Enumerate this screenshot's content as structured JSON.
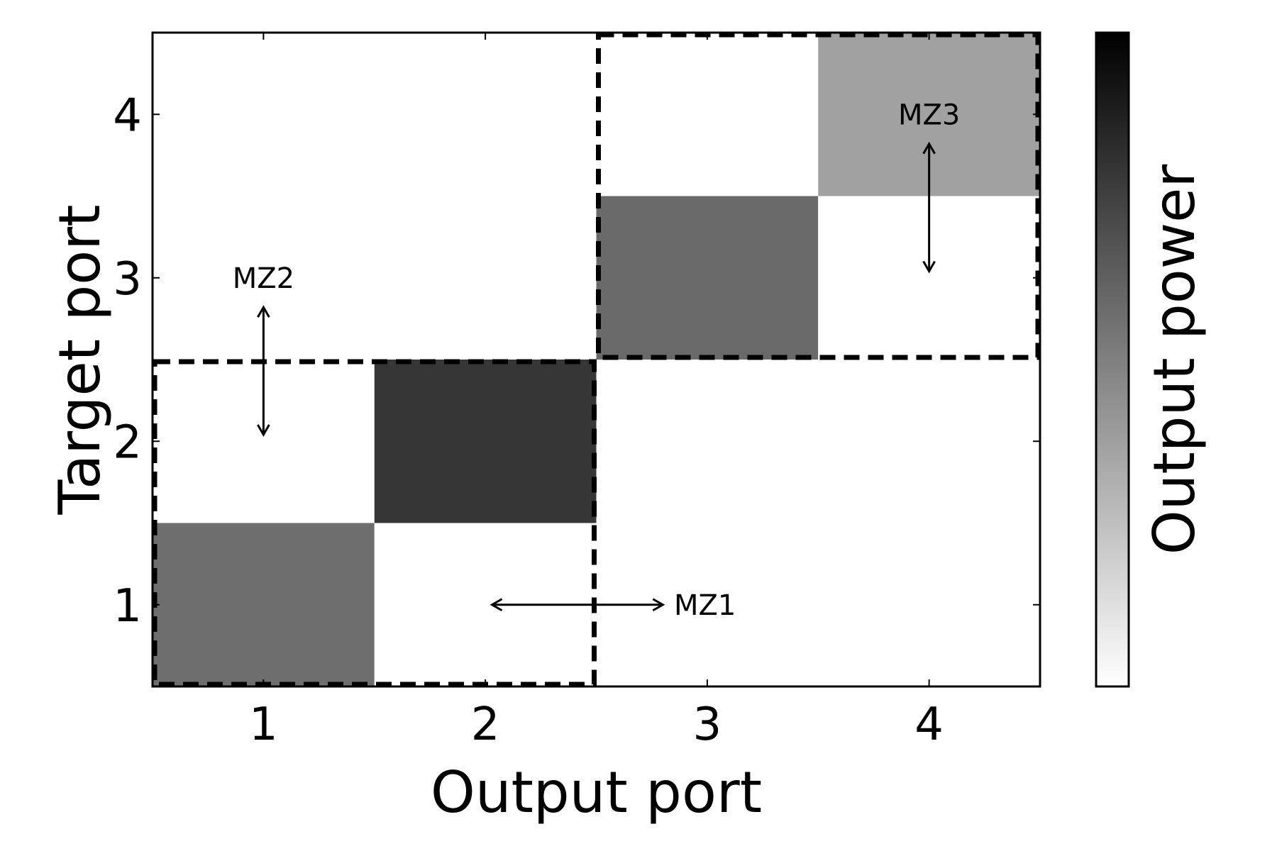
{
  "chart_data": {
    "type": "heatmap",
    "title": "",
    "xlabel": "Output port",
    "ylabel": "Target port",
    "colorbar_label": "Output power",
    "x_categories": [
      "1",
      "2",
      "3",
      "4"
    ],
    "y_categories": [
      "1",
      "2",
      "3",
      "4"
    ],
    "xlim": [
      0.5,
      4.5
    ],
    "ylim": [
      0.5,
      4.5
    ],
    "colormap": "gray_r",
    "color_low": "#ffffff",
    "color_high": "#000000",
    "value_range": [
      0,
      1
    ],
    "values": [
      [
        0.57,
        0.0,
        0.0,
        0.0
      ],
      [
        0.0,
        0.79,
        0.0,
        0.0
      ],
      [
        0.0,
        0.0,
        0.59,
        0.0
      ],
      [
        0.0,
        0.0,
        0.0,
        0.37
      ]
    ],
    "values_note_rows": "values[row] corresponds to target port row+1, column to output port col+1",
    "dashed_regions": [
      {
        "x_range": [
          0.5,
          2.5
        ],
        "y_range": [
          0.5,
          2.5
        ]
      },
      {
        "x_range": [
          2.5,
          4.5
        ],
        "y_range": [
          2.5,
          4.5
        ]
      }
    ],
    "annotations": [
      {
        "text": "MZ1",
        "arrow": "horizontal",
        "from": [
          2.03,
          1.0
        ],
        "to": [
          2.8,
          1.0
        ],
        "label_at": [
          2.85,
          1.0
        ],
        "anchor": "start"
      },
      {
        "text": "MZ2",
        "arrow": "vertical",
        "from": [
          1.0,
          2.04
        ],
        "to": [
          1.0,
          2.82
        ],
        "label_at": [
          1.0,
          3.0
        ],
        "anchor": "middle"
      },
      {
        "text": "MZ3",
        "arrow": "vertical",
        "from": [
          4.0,
          3.04
        ],
        "to": [
          4.0,
          3.82
        ],
        "label_at": [
          4.0,
          4.0
        ],
        "anchor": "middle"
      }
    ],
    "grid": false
  }
}
